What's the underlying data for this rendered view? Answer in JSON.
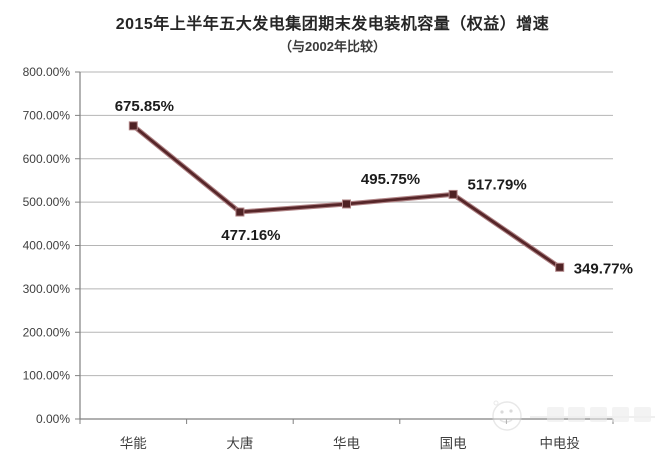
{
  "chart_data": {
    "type": "line",
    "title": "2015年上半年五大发电集团期末发电装机容量（权益）增速",
    "subtitle": "（与2002年比较）",
    "categories": [
      "华能",
      "大唐",
      "华电",
      "国电",
      "中电投"
    ],
    "series": [
      {
        "name": "期末发电装机容量（权益）增速",
        "values": [
          675.85,
          477.16,
          495.75,
          517.79,
          349.77
        ]
      }
    ],
    "data_labels": [
      "675.85%",
      "477.16%",
      "495.75%",
      "517.79%",
      "349.77%"
    ],
    "xlabel": "",
    "ylabel": "",
    "ylim": [
      0,
      800
    ],
    "ytick_step": 100,
    "ytick_labels": [
      "0.00%",
      "100.00%",
      "200.00%",
      "300.00%",
      "400.00%",
      "500.00%",
      "600.00%",
      "700.00%",
      "800.00%"
    ],
    "grid": "horizontal",
    "legend": "none"
  },
  "colors": {
    "series_line": "#572629",
    "series_halo": "#b08486",
    "marker_fill": "#4f2224",
    "gridline": "#b5b5b5",
    "axis": "#808080",
    "tick_text": "#3f3f3f",
    "data_label_text": "#1c1c1c",
    "title_text": "#262626",
    "watermark": "#dedede",
    "background": "#ffffff"
  },
  "watermark": {
    "logo_icon": "round-mascot-logo",
    "present": true
  }
}
